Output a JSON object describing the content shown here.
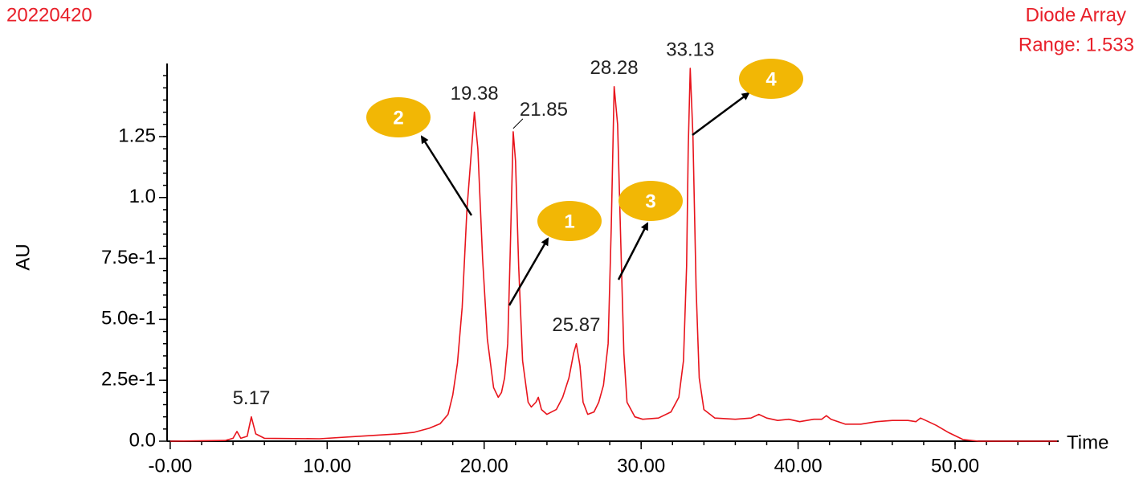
{
  "chart_data": {
    "type": "line",
    "title": "20220420",
    "detector": "Diode Array",
    "range_label": "Range: 1.533",
    "y_label": "AU",
    "x_label": "Time",
    "color": "#e8141c",
    "xlim": [
      -0.2,
      56.6
    ],
    "ylim": [
      0,
      1.55
    ],
    "xticks": [
      {
        "value": 0,
        "label": "-0.00"
      },
      {
        "value": 10,
        "label": "10.00"
      },
      {
        "value": 20,
        "label": "20.00"
      },
      {
        "value": 30,
        "label": "30.00"
      },
      {
        "value": 40,
        "label": "40.00"
      },
      {
        "value": 50,
        "label": "50.00"
      }
    ],
    "yticks": [
      {
        "value": 0,
        "label": "0.0"
      },
      {
        "value": 0.25,
        "label": "2.5e-1"
      },
      {
        "value": 0.5,
        "label": "5.0e-1"
      },
      {
        "value": 0.75,
        "label": "7.5e-1"
      },
      {
        "value": 1,
        "label": "1.0"
      },
      1.25
    ],
    "x": [
      0,
      3.5,
      4.0,
      4.25,
      4.5,
      4.9,
      5.17,
      5.45,
      6.0,
      9.5,
      12.0,
      14.5,
      15.5,
      16.5,
      17.2,
      17.7,
      18.0,
      18.3,
      18.6,
      18.9,
      19.38,
      19.6,
      19.9,
      20.2,
      20.6,
      20.9,
      21.1,
      21.3,
      21.5,
      21.65,
      21.85,
      22.0,
      22.2,
      22.45,
      22.8,
      23.0,
      23.3,
      23.45,
      23.65,
      24.0,
      24.6,
      25.0,
      25.4,
      25.7,
      25.87,
      26.1,
      26.3,
      26.6,
      27.0,
      27.3,
      27.6,
      27.9,
      28.1,
      28.28,
      28.5,
      28.7,
      28.9,
      29.1,
      29.6,
      30.1,
      31.1,
      31.9,
      32.4,
      32.7,
      32.9,
      33.0,
      33.13,
      33.3,
      33.5,
      33.7,
      34.0,
      34.7,
      36.0,
      37.0,
      37.5,
      38.0,
      38.7,
      39.4,
      40.1,
      41.0,
      41.5,
      41.8,
      42.1,
      43.0,
      44.0,
      45.0,
      46.0,
      47.0,
      47.5,
      47.8,
      48.3,
      48.8,
      49.6,
      50.5,
      51.5,
      56.5
    ],
    "values": [
      0.0,
      0.003,
      0.012,
      0.04,
      0.012,
      0.02,
      0.1,
      0.03,
      0.012,
      0.01,
      0.02,
      0.03,
      0.036,
      0.053,
      0.072,
      0.11,
      0.19,
      0.32,
      0.55,
      0.95,
      1.35,
      1.2,
      0.75,
      0.42,
      0.22,
      0.18,
      0.2,
      0.26,
      0.4,
      0.75,
      1.27,
      1.15,
      0.72,
      0.33,
      0.16,
      0.14,
      0.16,
      0.18,
      0.13,
      0.11,
      0.13,
      0.18,
      0.26,
      0.36,
      0.4,
      0.31,
      0.16,
      0.11,
      0.12,
      0.16,
      0.23,
      0.4,
      0.88,
      1.455,
      1.3,
      0.82,
      0.36,
      0.16,
      0.1,
      0.09,
      0.095,
      0.12,
      0.18,
      0.33,
      0.72,
      1.2,
      1.53,
      1.25,
      0.63,
      0.26,
      0.13,
      0.095,
      0.09,
      0.095,
      0.11,
      0.095,
      0.085,
      0.09,
      0.08,
      0.09,
      0.09,
      0.105,
      0.09,
      0.07,
      0.07,
      0.08,
      0.085,
      0.085,
      0.08,
      0.095,
      0.08,
      0.065,
      0.035,
      0.007,
      0.0,
      0.0
    ],
    "peaks": [
      {
        "x": 5.17,
        "y": 0.1
      },
      {
        "x": 19.38,
        "y": 1.35
      },
      {
        "x": 21.85,
        "y": 1.27
      },
      {
        "x": 25.87,
        "y": 0.4
      },
      {
        "x": 28.28,
        "y": 1.455
      },
      {
        "x": 33.13,
        "y": 1.53
      }
    ],
    "annotations": [
      "2",
      "1",
      "3",
      "4"
    ]
  }
}
